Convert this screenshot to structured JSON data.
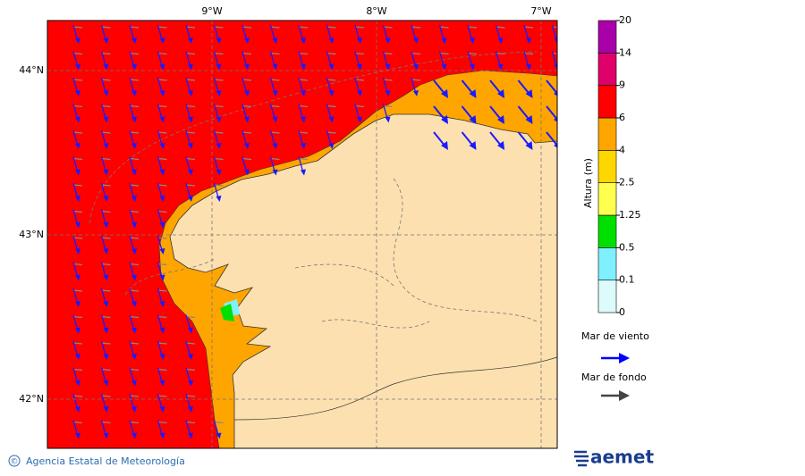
{
  "map": {
    "lon_labels": [
      "9°W",
      "8°W",
      "7°W"
    ],
    "lat_labels": [
      "44°N",
      "43°N",
      "42°N"
    ]
  },
  "colorbar": {
    "title": "Altura (m)",
    "levels": [
      0,
      0.1,
      0.5,
      1.25,
      2.5,
      4,
      6,
      9,
      14,
      20
    ],
    "colors": [
      "#dcfcfc",
      "#80f0ff",
      "#00e000",
      "#ffff50",
      "#ffd700",
      "#ffa500",
      "#ff0000",
      "#e0006a",
      "#aa00aa"
    ]
  },
  "legend": {
    "wind_sea": "Mar de viento",
    "swell": "Mar de fondo"
  },
  "footer": {
    "copyright": "©",
    "agency": "Agencia Estatal de Meteorología",
    "logo": "aemet"
  }
}
